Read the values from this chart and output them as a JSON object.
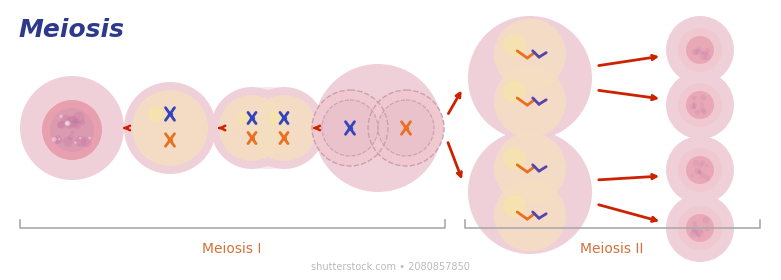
{
  "title": "Meiosis",
  "title_color": "#2d3a8c",
  "title_fontsize": 18,
  "bg_color": "#ffffff",
  "label_meiosis1": "Meiosis I",
  "label_meiosis2": "Meiosis II",
  "label_color": "#d4703a",
  "label_fontsize": 10,
  "arrow_color": "#cc2200",
  "cell_pink_outer": "#f0d0d8",
  "cell_peach_inner": "#f5dfc0",
  "cell_pink_inner": "#f0c8d0",
  "cell_nucleus_pink": "#e8a0b0",
  "cell_dashed_edge": "#c8a0b0",
  "chr_blue": "#3344bb",
  "chr_orange": "#e87020",
  "chr_purple": "#5544aa",
  "bracket_color": "#aaaaaa",
  "watermark": "shutterstock.com • 2080857850",
  "watermark_color": "#bbbbbb",
  "watermark_fontsize": 7
}
